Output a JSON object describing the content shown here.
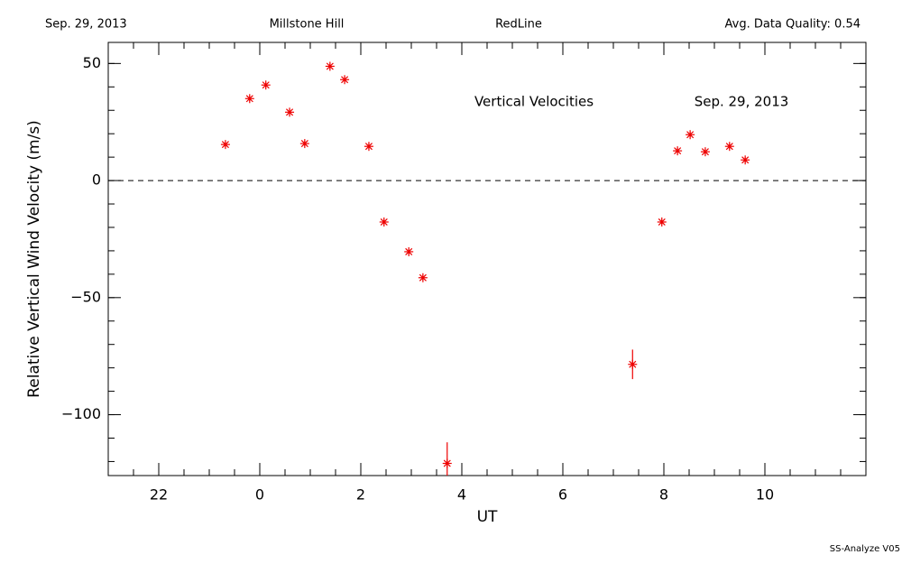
{
  "chart_data": {
    "type": "scatter",
    "header": [
      "Sep. 29, 2013",
      "Millstone Hill",
      "RedLine",
      "Avg. Data Quality: 0.54"
    ],
    "annotations": [
      "Vertical Velocities",
      "Sep. 29, 2013"
    ],
    "footer": "SS-Analyze V05",
    "xlabel": "UT",
    "ylabel": "Relative Vertical Wind Velocity (m/s)",
    "color": "#ee0000",
    "x": [
      -0.68,
      -0.2,
      0.12,
      0.59,
      0.89,
      1.39,
      1.68,
      2.16,
      2.46,
      2.95,
      3.23,
      3.71,
      7.38,
      7.96,
      8.27,
      8.52,
      8.82,
      9.3,
      9.61
    ],
    "values": [
      15.4,
      35,
      40.8,
      29.2,
      15.8,
      48.8,
      43.1,
      14.6,
      -17.7,
      -30.4,
      -41.5,
      -120.8,
      -78.5,
      -17.7,
      12.7,
      19.6,
      12.3,
      14.6,
      8.8
    ],
    "errors": [
      1,
      1,
      1,
      1,
      1,
      1,
      1,
      1,
      1,
      1,
      1,
      9,
      6.3,
      1,
      1,
      1,
      1,
      1,
      1
    ],
    "xlim": [
      -3,
      12
    ],
    "ylim": [
      -126,
      59
    ],
    "xticks": [
      {
        "value": -2,
        "label": "22"
      },
      0,
      2,
      4,
      6,
      8,
      10
    ],
    "yticks": [
      {
        "value": -100,
        "label": "−100"
      },
      {
        "value": -50,
        "label": "−50"
      },
      0,
      50
    ],
    "minor_xstep": 0.5,
    "minor_ystep": 10,
    "hline": 0
  }
}
